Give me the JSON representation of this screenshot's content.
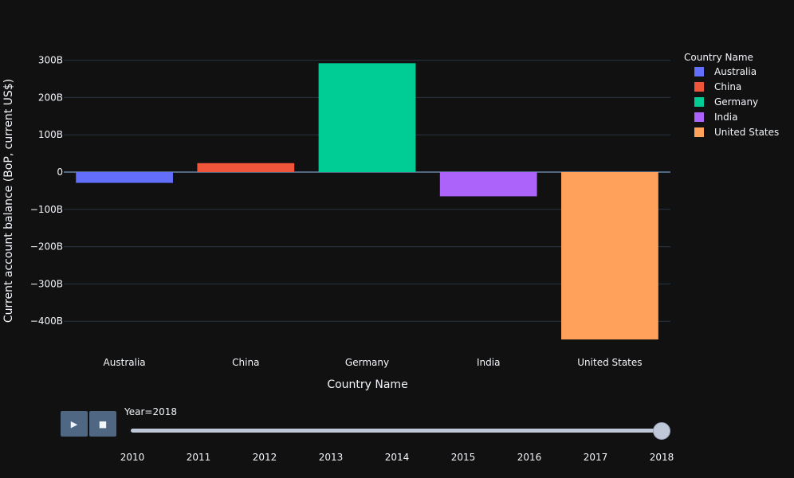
{
  "chart_data": {
    "type": "bar",
    "categories": [
      "Australia",
      "China",
      "Germany",
      "India",
      "United States"
    ],
    "values": [
      -29,
      24,
      292,
      -65,
      -449
    ],
    "colors": [
      "#636efa",
      "#ef553b",
      "#00cc96",
      "#ab63fa",
      "#ffa15a"
    ],
    "xlabel": "Country Name",
    "ylabel": "Current account balance (BoP, current US$)",
    "ylim": [
      -450,
      300
    ],
    "yticks": [
      300,
      200,
      100,
      0,
      -100,
      -200,
      -300,
      -400
    ],
    "ytick_labels": [
      "300B",
      "200B",
      "100B",
      "0",
      "−100B",
      "−200B",
      "−300B",
      "−400B"
    ],
    "unit": "B",
    "grid": true,
    "legend": {
      "title": "Country Name",
      "placement": "right",
      "entries": [
        "Australia",
        "China",
        "Germany",
        "India",
        "United States"
      ]
    }
  },
  "slider": {
    "current_label": "Year=2018",
    "years": [
      "2010",
      "2011",
      "2012",
      "2013",
      "2014",
      "2015",
      "2016",
      "2017",
      "2018"
    ],
    "selected": "2018",
    "play_icon": "play-icon",
    "stop_icon": "stop-icon"
  }
}
